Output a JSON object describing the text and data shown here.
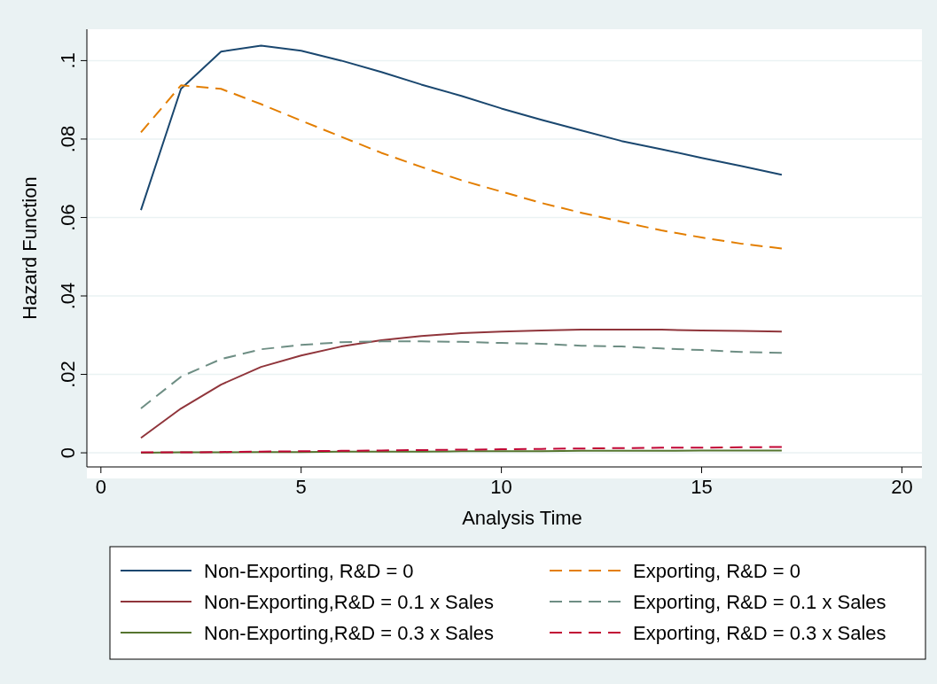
{
  "chart_data": {
    "type": "line",
    "xlabel": "Analysis Time",
    "ylabel": "Hazard Function",
    "x": [
      1,
      2,
      3,
      4,
      5,
      6,
      7,
      8,
      9,
      10,
      11,
      12,
      13,
      14,
      15,
      16,
      17
    ],
    "xlim": [
      -0.35,
      20.5
    ],
    "xticks": [
      0,
      5,
      10,
      15,
      20
    ],
    "ylim": [
      -0.0036,
      0.108
    ],
    "yticks": [
      {
        "value": 0,
        "label": "0"
      },
      {
        "value": 0.02,
        "label": ".02"
      },
      {
        "value": 0.04,
        "label": ".04"
      },
      {
        "value": 0.06,
        "label": ".06"
      },
      {
        "value": 0.08,
        "label": ".08"
      },
      {
        "value": 0.1,
        "label": ".1"
      }
    ],
    "grid": "y",
    "legend": "bottom",
    "marker": "none",
    "series": [
      {
        "name": "Non-Exporting, R&D = 0",
        "color": "#1a476f",
        "line_style": "solid",
        "values": [
          0.0619,
          0.0928,
          0.1023,
          0.1038,
          0.1025,
          0.1,
          0.0971,
          0.0939,
          0.091,
          0.0878,
          0.0849,
          0.0822,
          0.0795,
          0.0774,
          0.0752,
          0.0731,
          0.0709
        ]
      },
      {
        "name": "Exporting, R&D = 0",
        "color": "#e37e00",
        "line_style": "dashed",
        "values": [
          0.0817,
          0.0937,
          0.0928,
          0.0889,
          0.0847,
          0.0806,
          0.0765,
          0.0729,
          0.0695,
          0.0666,
          0.0637,
          0.0612,
          0.0589,
          0.0567,
          0.0549,
          0.0533,
          0.0521
        ]
      },
      {
        "name": "Non-Exporting,R&D = 0.1 x Sales",
        "color": "#90353b",
        "line_style": "solid",
        "values": [
          0.0038,
          0.0113,
          0.0174,
          0.0219,
          0.0248,
          0.0271,
          0.0287,
          0.0298,
          0.0305,
          0.0309,
          0.0312,
          0.0314,
          0.0314,
          0.0314,
          0.0312,
          0.0311,
          0.0309
        ]
      },
      {
        "name": "Exporting, R&D = 0.1 x Sales",
        "color": "#6e8e84",
        "line_style": "dashed",
        "values": [
          0.0113,
          0.0194,
          0.0239,
          0.0264,
          0.0275,
          0.0282,
          0.0284,
          0.0284,
          0.0283,
          0.028,
          0.0278,
          0.0273,
          0.0271,
          0.0266,
          0.0262,
          0.0257,
          0.0255
        ]
      },
      {
        "name": "Non-Exporting,R&D = 0.3 x Sales",
        "color": "#55752f",
        "line_style": "solid",
        "values": [
          0,
          0.0001,
          0.0001,
          0.0002,
          0.0002,
          0.0003,
          0.0003,
          0.0003,
          0.0004,
          0.0004,
          0.0004,
          0.0005,
          0.0005,
          0.0005,
          0.0006,
          0.0006,
          0.0006
        ]
      },
      {
        "name": "Exporting, R&D = 0.3 x Sales",
        "color": "#c10534",
        "line_style": "dashed",
        "values": [
          0.0001,
          0.0001,
          0.0002,
          0.0003,
          0.0004,
          0.0005,
          0.0006,
          0.0007,
          0.0008,
          0.0009,
          0.001,
          0.0011,
          0.0012,
          0.0013,
          0.0013,
          0.0014,
          0.0015
        ]
      }
    ]
  }
}
